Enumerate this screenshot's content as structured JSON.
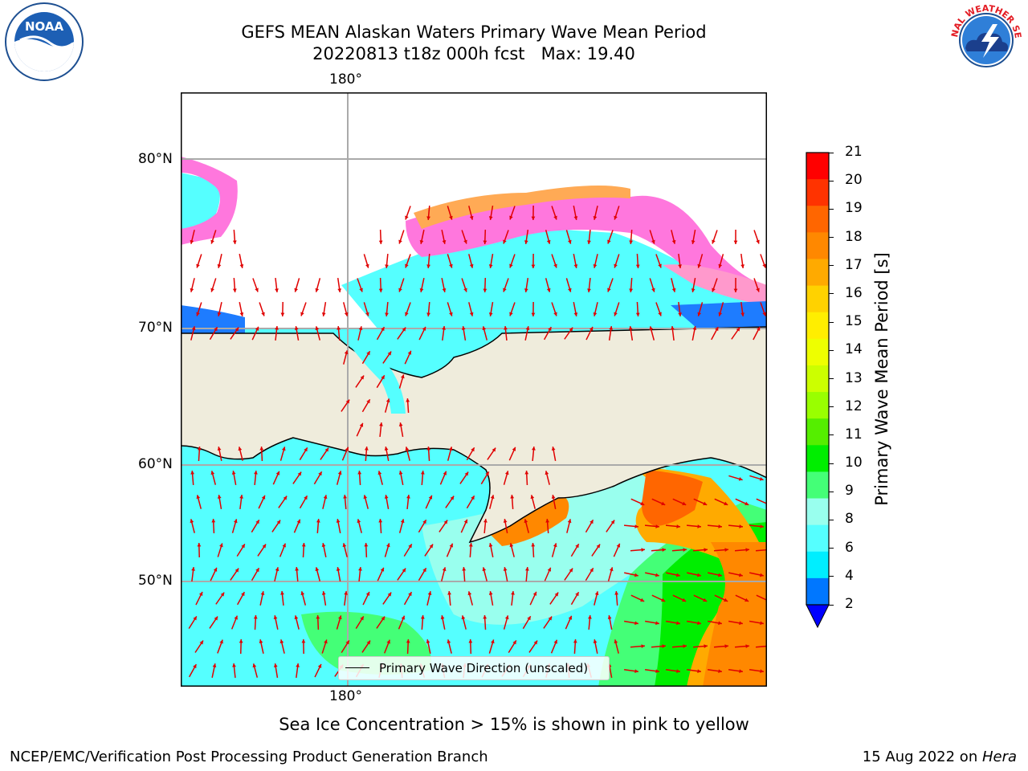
{
  "title": {
    "line1": "GEFS MEAN Alaskan Waters Primary Wave Mean Period",
    "line2": "20220813 t18z 000h fcst   Max: 19.40"
  },
  "logos": {
    "left": "NOAA",
    "right": "NATIONAL WEATHER SERVICE"
  },
  "map": {
    "lon_label_top": "180°",
    "lon_label_bottom": "180°",
    "lat_labels": [
      "80°N",
      "70°N",
      "60°N",
      "50°N"
    ],
    "legend_label": "Primary Wave Direction (unscaled)"
  },
  "colorbar": {
    "label": "Primary Wave Mean Period [s]",
    "ticks": [
      "21",
      "20",
      "19",
      "18",
      "17",
      "16",
      "15",
      "14",
      "13",
      "12",
      "11",
      "10",
      "9",
      "8",
      "6",
      "4",
      "2"
    ],
    "colors": [
      "#ff0000",
      "#ff3300",
      "#ff6600",
      "#ff8800",
      "#ffaa00",
      "#ffd200",
      "#ffee00",
      "#eeff00",
      "#ccff00",
      "#99ff00",
      "#55ee00",
      "#00ee00",
      "#44ff77",
      "#99ffee",
      "#55ffff",
      "#00eeff",
      "#0077ff"
    ],
    "extend_color": "#0000ff"
  },
  "caption": "Sea Ice Concentration > 15% is shown in pink to yellow",
  "footer": {
    "left": "NCEP/EMC/Verification Post Processing Product Generation Branch",
    "date": "15 Aug 2022 on ",
    "machine": "Hera"
  }
}
